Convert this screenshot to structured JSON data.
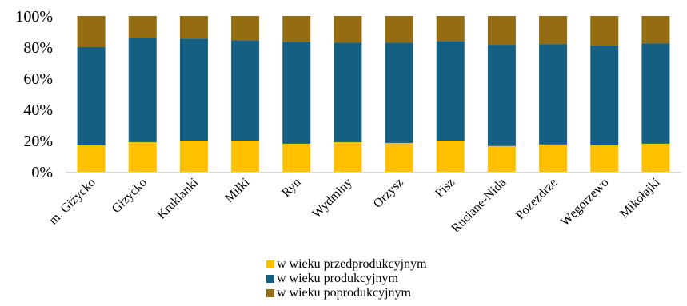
{
  "chart_data": {
    "type": "bar",
    "stacked": true,
    "percent": true,
    "categories": [
      "m. Giżycko",
      "Giżycko",
      "Kruklanki",
      "Miłki",
      "Ryn",
      "Wydminy",
      "Orzysz",
      "Pisz",
      "Ruciane-Nida",
      "Pozezdrze",
      "Węgorzewo",
      "Mikołajki"
    ],
    "series": [
      {
        "name": "w wieku przedprodukcyjnym",
        "color": "#FFC000",
        "values": [
          17,
          19,
          20,
          20,
          18,
          19,
          18.5,
          20,
          16.5,
          17.5,
          17,
          18
        ]
      },
      {
        "name": "w wieku produkcyjnym",
        "color": "#156082",
        "values": [
          63,
          67,
          65.5,
          64.5,
          65.5,
          64,
          64.5,
          64,
          65,
          64.5,
          64,
          64.5
        ]
      },
      {
        "name": "w wieku poprodukcyjnym",
        "color": "#946D13",
        "values": [
          20,
          14,
          14.5,
          15.5,
          16.5,
          17,
          17,
          16,
          18.5,
          18,
          19,
          17.5
        ]
      }
    ],
    "y_ticks": [
      "0%",
      "20%",
      "40%",
      "60%",
      "80%",
      "100%"
    ],
    "ylim": [
      0,
      100
    ],
    "grid": false,
    "legend_position": "bottom"
  }
}
